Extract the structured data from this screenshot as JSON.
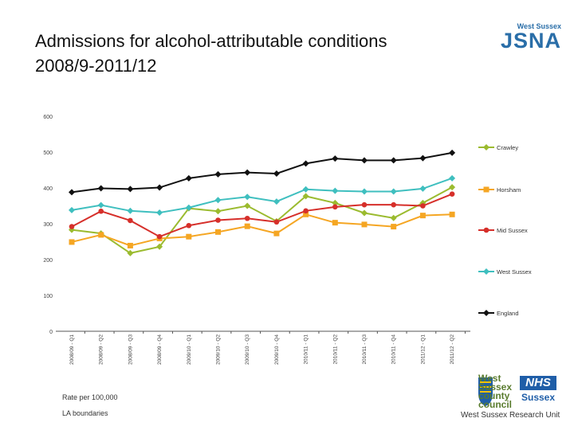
{
  "header": {
    "title_line1": "Admissions for alcohol-attributable conditions",
    "title_line2": "2008/9-2011/12"
  },
  "logo": {
    "small": "West Sussex",
    "big": "JSNA"
  },
  "chart_data": {
    "type": "line",
    "title": "Admissions for alcohol-attributable conditions 2008/9-2011/12",
    "xlabel": "",
    "ylabel": "Rate per 100,000",
    "ylim": [
      0,
      600
    ],
    "yticks": [
      "0",
      "100",
      "200",
      "300",
      "400",
      "500",
      "600"
    ],
    "grid": false,
    "legend_position": "right",
    "categories": [
      "2008/09 - Q1",
      "2008/09 - Q2",
      "2008/09 - Q3",
      "2008/09 - Q4",
      "2009/10 - Q1",
      "2009/10 - Q2",
      "2009/10 - Q3",
      "2009/10 - Q4",
      "2010/11 - Q1",
      "2010/11 - Q2",
      "2010/11 - Q3",
      "2010/11 - Q4",
      "2011/12 - Q1",
      "2011/12 - Q2"
    ],
    "series": [
      {
        "name": "Crawley",
        "color": "#9bbb2f",
        "marker": "diamond",
        "values": [
          283,
          273,
          218,
          236,
          343,
          335,
          350,
          307,
          377,
          358,
          330,
          316,
          358,
          402
        ]
      },
      {
        "name": "Horsham",
        "color": "#f5a623",
        "marker": "square",
        "values": [
          249,
          269,
          239,
          259,
          264,
          277,
          293,
          273,
          326,
          303,
          298,
          292,
          323,
          326
        ]
      },
      {
        "name": "Mid Sussex",
        "color": "#d62f2a",
        "marker": "circle",
        "values": [
          292,
          335,
          309,
          264,
          295,
          310,
          315,
          305,
          336,
          347,
          353,
          353,
          350,
          383
        ]
      },
      {
        "name": "West Sussex",
        "color": "#3fbfbf",
        "marker": "diamond",
        "values": [
          338,
          352,
          336,
          331,
          345,
          366,
          375,
          362,
          396,
          392,
          390,
          390,
          398,
          427
        ]
      },
      {
        "name": "England",
        "color": "#111111",
        "marker": "diamond",
        "values": [
          388,
          399,
          397,
          401,
          427,
          438,
          443,
          440,
          468,
          482,
          477,
          477,
          483,
          498
        ]
      }
    ]
  },
  "footer": {
    "rate_note": "Rate per 100,000",
    "boundaries_note": "LA boundaries",
    "council_name": "West Sussex county council",
    "nhs": "NHS",
    "nhs_sub": "Sussex",
    "research_unit": "West Sussex Research Unit"
  }
}
